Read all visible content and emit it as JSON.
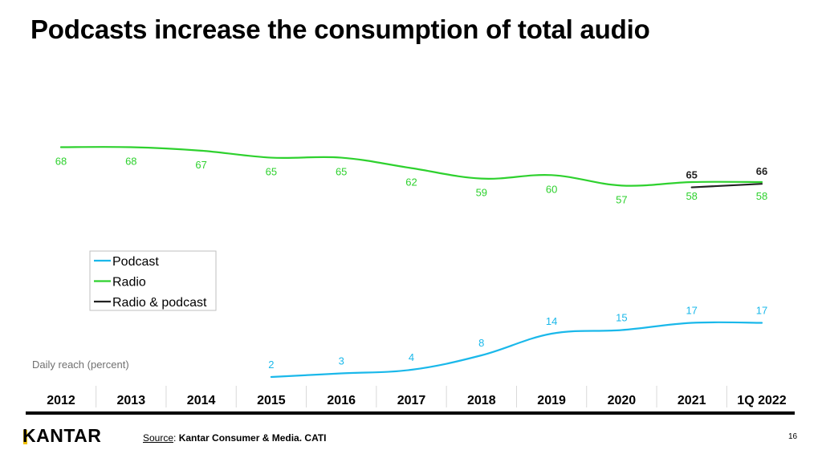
{
  "title": "Podcasts increase the consumption of total audio",
  "colors": {
    "podcast": "#1ab8ea",
    "radio": "#2ed12e",
    "radio_podcast": "#222222",
    "axis_text": "#000000",
    "note": "#707070"
  },
  "chart_data": {
    "type": "line",
    "title": "Podcasts increase the consumption of total audio",
    "categories": [
      "2012",
      "2013",
      "2014",
      "2015",
      "2016",
      "2017",
      "2018",
      "2019",
      "2020",
      "2021",
      "1Q 2022"
    ],
    "ylabel": "Daily reach (percent)",
    "series": [
      {
        "name": "Podcast",
        "color": "#1ab8ea",
        "values": [
          null,
          null,
          null,
          2,
          3,
          4,
          8,
          14,
          15,
          17,
          17
        ]
      },
      {
        "name": "Radio",
        "color": "#2ed12e",
        "values": [
          68,
          68,
          67,
          65,
          65,
          62,
          59,
          60,
          57,
          58,
          58
        ]
      },
      {
        "name": "Radio & podcast",
        "color": "#222222",
        "values": [
          null,
          null,
          null,
          null,
          null,
          null,
          null,
          null,
          null,
          65,
          66
        ]
      }
    ],
    "legend": [
      "Podcast",
      "Radio",
      "Radio & podcast"
    ],
    "legend_position": "left-middle",
    "note": "Daily reach (percent)"
  },
  "footer": {
    "logo": "KANTAR",
    "source_label": "Source",
    "source_text": "Kantar Consumer & Media. CATI",
    "page_number": "16"
  }
}
